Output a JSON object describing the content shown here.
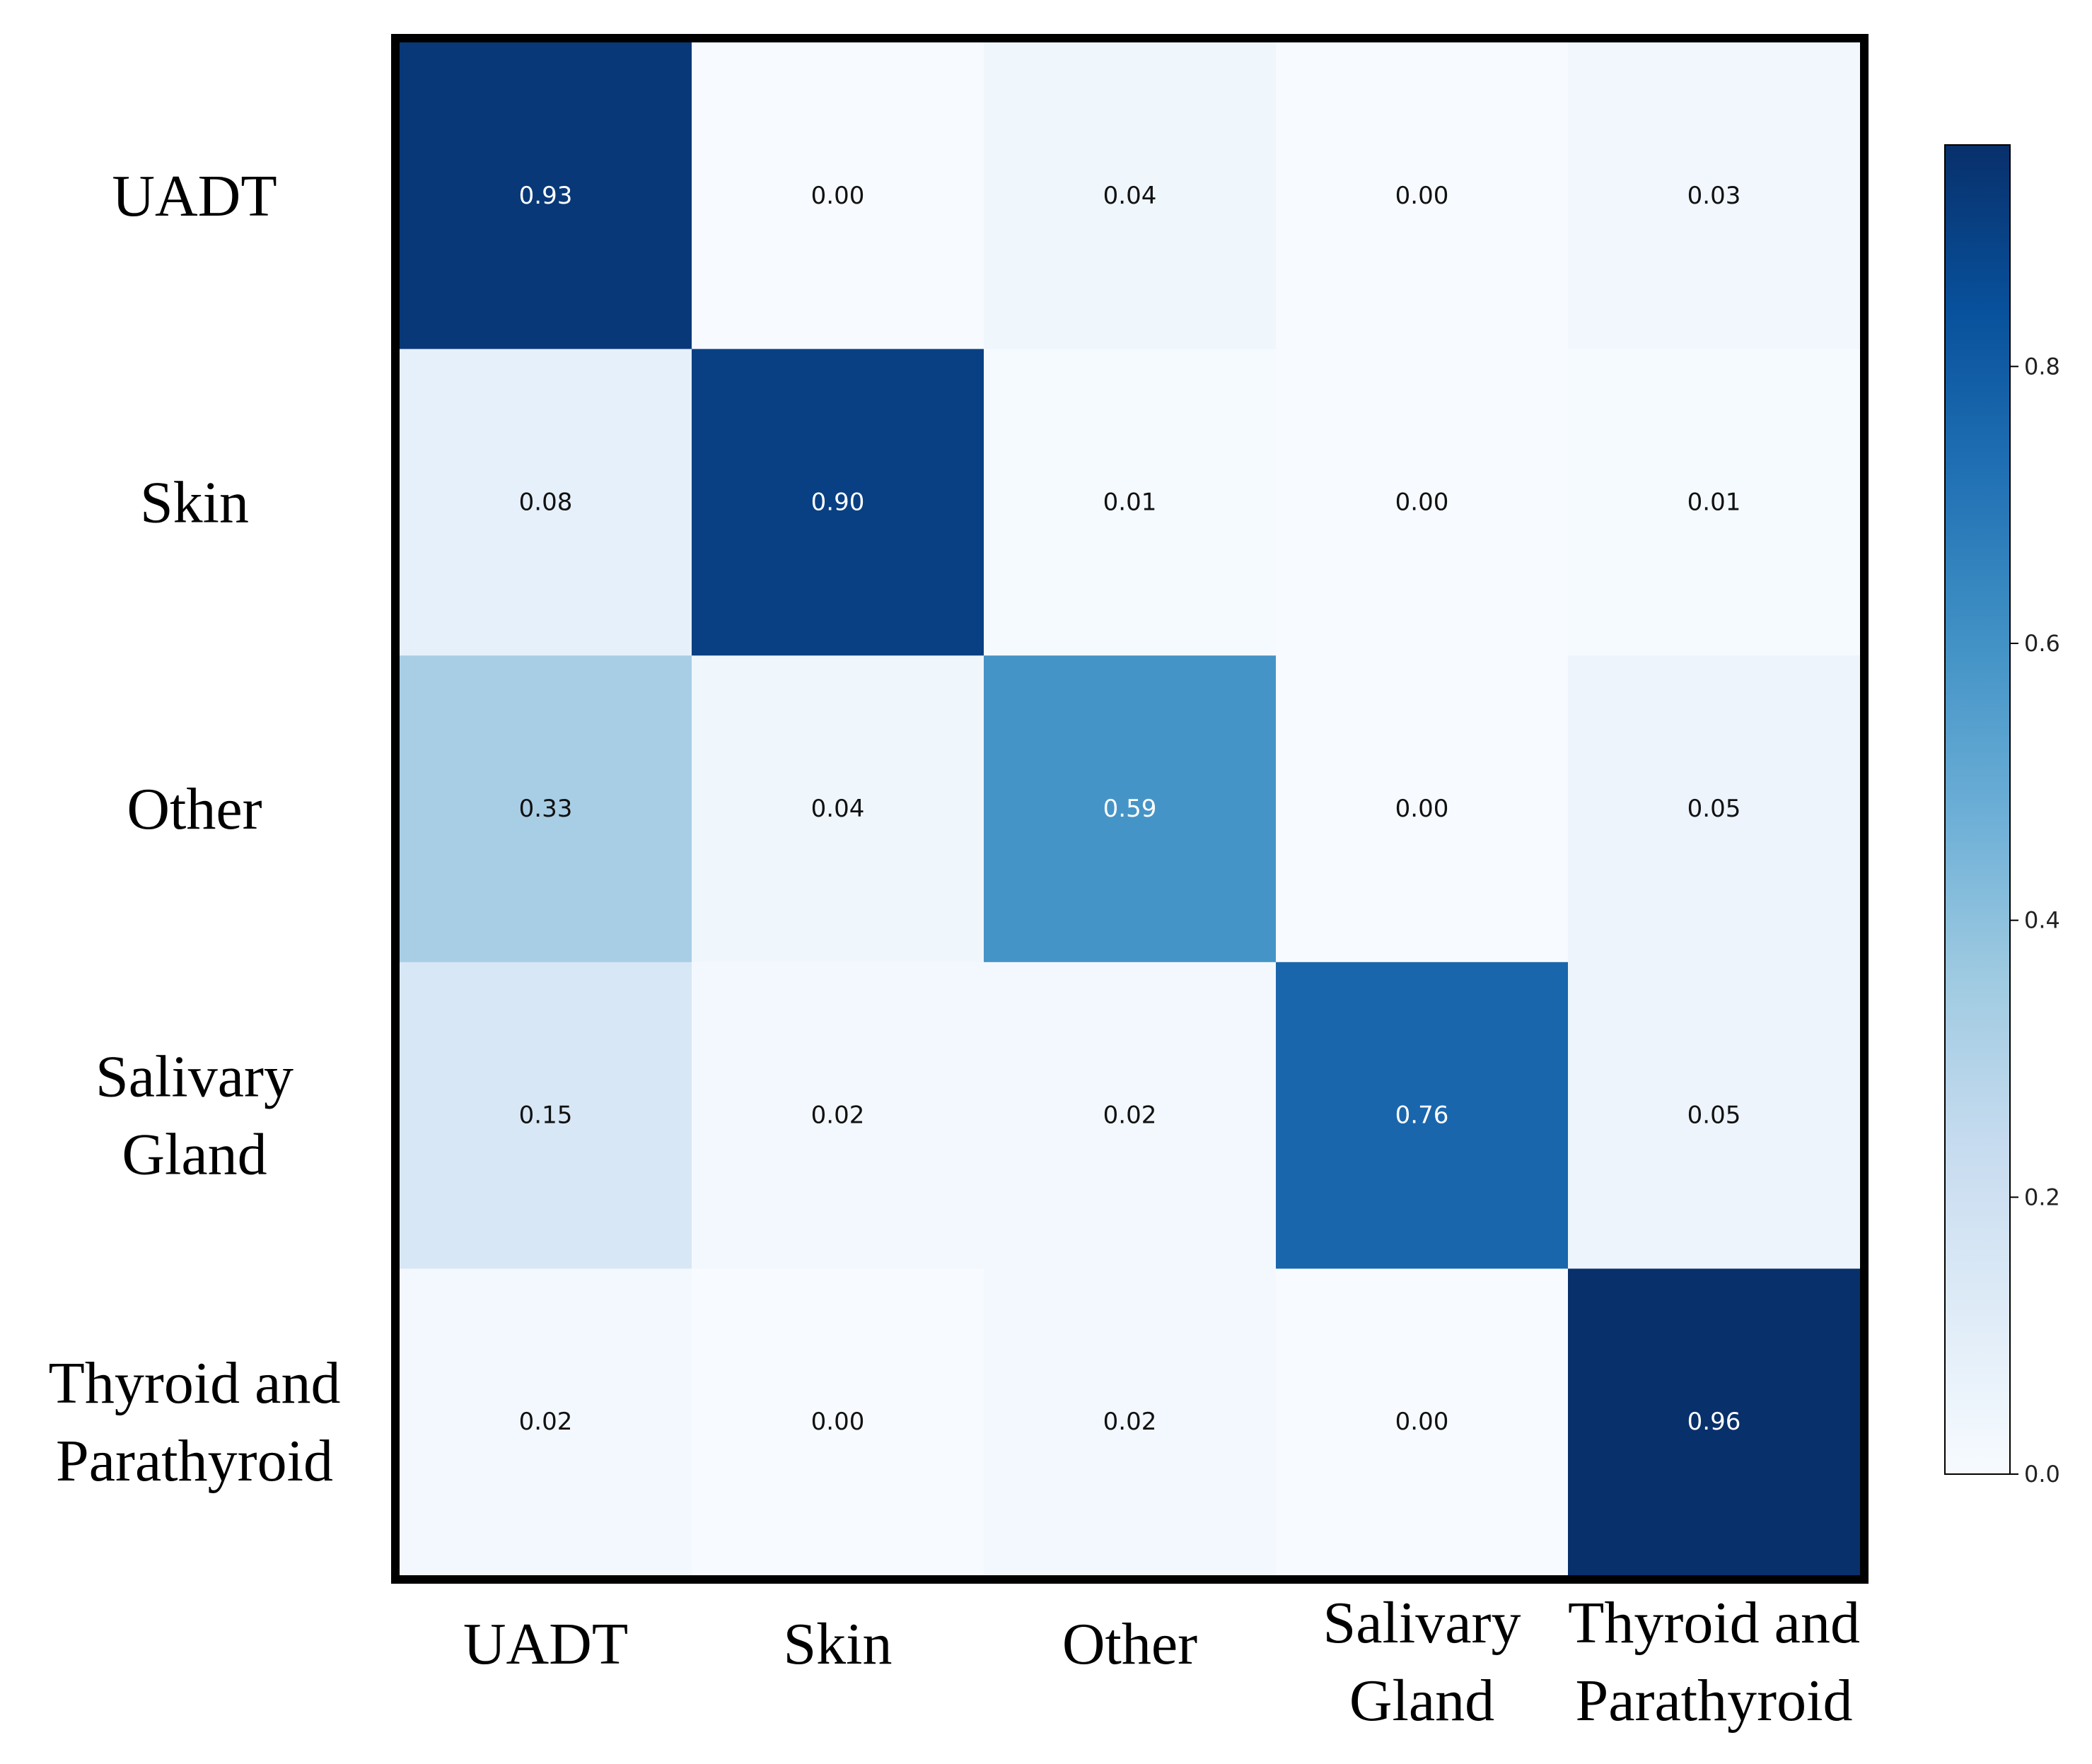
{
  "chart_data": {
    "type": "heatmap",
    "title": "",
    "xlabel": "",
    "ylabel": "",
    "row_labels": [
      [
        "UADT"
      ],
      [
        "Skin"
      ],
      [
        "Other"
      ],
      [
        "Salivary",
        "Gland"
      ],
      [
        "Thyroid and",
        "Parathyroid"
      ]
    ],
    "col_labels": [
      [
        "UADT"
      ],
      [
        "Skin"
      ],
      [
        "Other"
      ],
      [
        "Salivary",
        "Gland"
      ],
      [
        "Thyroid and",
        "Parathyroid"
      ]
    ],
    "values": [
      [
        0.93,
        0.0,
        0.04,
        0.0,
        0.03
      ],
      [
        0.08,
        0.9,
        0.01,
        0.0,
        0.01
      ],
      [
        0.33,
        0.04,
        0.59,
        0.0,
        0.05
      ],
      [
        0.15,
        0.02,
        0.02,
        0.76,
        0.05
      ],
      [
        0.02,
        0.0,
        0.02,
        0.0,
        0.96
      ]
    ],
    "value_format": "0.00",
    "colormap": "Blues",
    "colorbar": {
      "range": [
        0.0,
        0.96
      ],
      "ticks": [
        0.0,
        0.2,
        0.4,
        0.6,
        0.8
      ],
      "tick_labels": [
        "0.0",
        "0.2",
        "0.4",
        "0.6",
        "0.8"
      ]
    }
  }
}
